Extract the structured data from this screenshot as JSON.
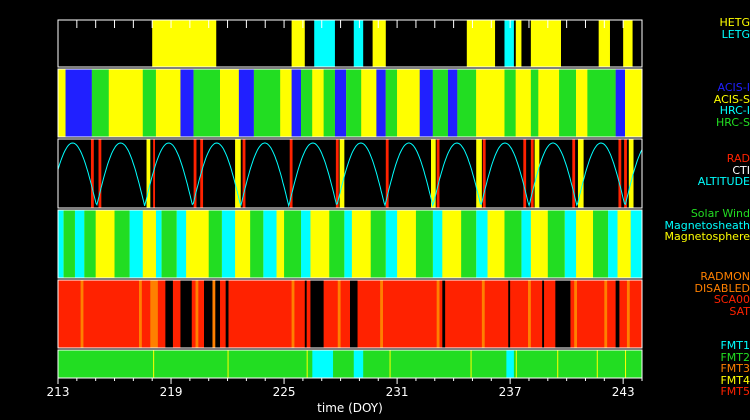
{
  "colors": {
    "yellow": "#ffff00",
    "cyan": "#00ffff",
    "blue": "#2020ff",
    "green": "#22dd22",
    "red": "#ff2200",
    "orange": "#ff8000",
    "white": "#ffffff",
    "black": "#000000"
  },
  "chart_data": {
    "type": "timeline",
    "xlabel": "time (DOY)",
    "xlim": [
      213,
      244
    ],
    "xticks": [
      "213",
      "219",
      "225",
      "231",
      "237",
      "243"
    ],
    "xtick_values": [
      213,
      219,
      225,
      231,
      237,
      243
    ],
    "legends": [
      {
        "panel": "grating",
        "entries": [
          {
            "label": "HETG",
            "color": "#ffff00"
          },
          {
            "label": "LETG",
            "color": "#00ffff"
          }
        ]
      },
      {
        "panel": "instrument",
        "entries": [
          {
            "label": "ACIS-I",
            "color": "#2020ff"
          },
          {
            "label": "ACIS-S",
            "color": "#ffff00"
          },
          {
            "label": "HRC-I",
            "color": "#00ffff"
          },
          {
            "label": "HRC-S",
            "color": "#22dd22"
          }
        ]
      },
      {
        "panel": "radiation",
        "entries": [
          {
            "label": "RAD",
            "color": "#ff2200"
          },
          {
            "label": "CTI",
            "color": "#ffffff"
          },
          {
            "label": "ALTITUDE",
            "color": "#00ffff"
          }
        ]
      },
      {
        "panel": "region",
        "entries": [
          {
            "label": "Solar Wind",
            "color": "#22dd22"
          },
          {
            "label": "Magnetosheath",
            "color": "#00ffff"
          },
          {
            "label": "Magnetosphere",
            "color": "#ffff00"
          }
        ]
      },
      {
        "panel": "radmon",
        "entries": [
          {
            "label": "RADMON",
            "color": "#ff8000"
          },
          {
            "label": "DISABLED",
            "color": "#ff8000"
          },
          {
            "label": "SCA00",
            "color": "#ff2200"
          },
          {
            "label": "SAT",
            "color": "#ff2200"
          }
        ]
      },
      {
        "panel": "format",
        "entries": [
          {
            "label": "FMT1",
            "color": "#00ffff"
          },
          {
            "label": "FMT2",
            "color": "#22dd22"
          },
          {
            "label": "FMT3",
            "color": "#ff8000"
          },
          {
            "label": "FMT4",
            "color": "#ffff00"
          },
          {
            "label": "FMT5",
            "color": "#ff2200"
          }
        ]
      }
    ],
    "panels": [
      {
        "name": "grating",
        "background": "#000000",
        "ticks": true,
        "segments": [
          {
            "x0": 218.0,
            "x1": 221.4,
            "color": "#ffff00"
          },
          {
            "x0": 225.4,
            "x1": 226.1,
            "color": "#ffff00"
          },
          {
            "x0": 226.6,
            "x1": 227.7,
            "color": "#00ffff"
          },
          {
            "x0": 228.7,
            "x1": 229.2,
            "color": "#00ffff"
          },
          {
            "x0": 229.7,
            "x1": 230.4,
            "color": "#ffff00"
          },
          {
            "x0": 234.7,
            "x1": 236.2,
            "color": "#ffff00"
          },
          {
            "x0": 236.7,
            "x1": 237.2,
            "color": "#00ffff"
          },
          {
            "x0": 237.3,
            "x1": 237.6,
            "color": "#ffff00"
          },
          {
            "x0": 238.1,
            "x1": 239.7,
            "color": "#ffff00"
          },
          {
            "x0": 241.7,
            "x1": 242.3,
            "color": "#ffff00"
          },
          {
            "x0": 243.0,
            "x1": 243.5,
            "color": "#ffff00"
          }
        ]
      },
      {
        "name": "instrument",
        "background": "#ffff00",
        "ticks": false,
        "segments": [
          {
            "x0": 213.0,
            "x1": 213.4,
            "color": "#ffff00"
          },
          {
            "x0": 213.4,
            "x1": 214.8,
            "color": "#2020ff"
          },
          {
            "x0": 214.8,
            "x1": 215.7,
            "color": "#22dd22"
          },
          {
            "x0": 215.7,
            "x1": 217.5,
            "color": "#ffff00"
          },
          {
            "x0": 217.5,
            "x1": 218.2,
            "color": "#22dd22"
          },
          {
            "x0": 218.2,
            "x1": 219.5,
            "color": "#ffff00"
          },
          {
            "x0": 219.5,
            "x1": 220.2,
            "color": "#2020ff"
          },
          {
            "x0": 220.2,
            "x1": 221.6,
            "color": "#22dd22"
          },
          {
            "x0": 221.6,
            "x1": 222.6,
            "color": "#ffff00"
          },
          {
            "x0": 222.6,
            "x1": 223.4,
            "color": "#2020ff"
          },
          {
            "x0": 223.4,
            "x1": 224.8,
            "color": "#22dd22"
          },
          {
            "x0": 224.8,
            "x1": 225.4,
            "color": "#ffff00"
          },
          {
            "x0": 225.4,
            "x1": 225.9,
            "color": "#2020ff"
          },
          {
            "x0": 225.9,
            "x1": 226.5,
            "color": "#22dd22"
          },
          {
            "x0": 226.5,
            "x1": 227.1,
            "color": "#ffff00"
          },
          {
            "x0": 227.1,
            "x1": 227.7,
            "color": "#22dd22"
          },
          {
            "x0": 227.7,
            "x1": 228.3,
            "color": "#2020ff"
          },
          {
            "x0": 228.3,
            "x1": 229.1,
            "color": "#22dd22"
          },
          {
            "x0": 229.1,
            "x1": 229.9,
            "color": "#ffff00"
          },
          {
            "x0": 229.9,
            "x1": 230.4,
            "color": "#2020ff"
          },
          {
            "x0": 230.4,
            "x1": 231.0,
            "color": "#22dd22"
          },
          {
            "x0": 231.0,
            "x1": 232.2,
            "color": "#ffff00"
          },
          {
            "x0": 232.2,
            "x1": 232.9,
            "color": "#2020ff"
          },
          {
            "x0": 232.9,
            "x1": 233.7,
            "color": "#22dd22"
          },
          {
            "x0": 233.7,
            "x1": 234.2,
            "color": "#2020ff"
          },
          {
            "x0": 234.2,
            "x1": 235.2,
            "color": "#22dd22"
          },
          {
            "x0": 235.2,
            "x1": 236.7,
            "color": "#ffff00"
          },
          {
            "x0": 236.7,
            "x1": 237.3,
            "color": "#22dd22"
          },
          {
            "x0": 237.3,
            "x1": 238.1,
            "color": "#ffff00"
          },
          {
            "x0": 238.1,
            "x1": 238.5,
            "color": "#22dd22"
          },
          {
            "x0": 238.5,
            "x1": 239.6,
            "color": "#ffff00"
          },
          {
            "x0": 239.6,
            "x1": 240.5,
            "color": "#22dd22"
          },
          {
            "x0": 240.5,
            "x1": 241.1,
            "color": "#ffff00"
          },
          {
            "x0": 241.1,
            "x1": 242.6,
            "color": "#22dd22"
          },
          {
            "x0": 242.6,
            "x1": 243.1,
            "color": "#2020ff"
          },
          {
            "x0": 243.1,
            "x1": 244.0,
            "color": "#ffff00"
          }
        ]
      },
      {
        "name": "radiation",
        "background": "#000000",
        "ticks": false,
        "altitude_period_days": 2.55,
        "altitude_phase_day": 215.05,
        "segments": [
          {
            "x0": 214.75,
            "x1": 214.9,
            "color": "#ff2200"
          },
          {
            "x0": 215.15,
            "x1": 215.3,
            "color": "#ff2200"
          },
          {
            "x0": 217.7,
            "x1": 217.9,
            "color": "#ffff00"
          },
          {
            "x0": 218.05,
            "x1": 218.15,
            "color": "#ff2200"
          },
          {
            "x0": 220.2,
            "x1": 220.35,
            "color": "#ff2200"
          },
          {
            "x0": 220.55,
            "x1": 220.7,
            "color": "#ff2200"
          },
          {
            "x0": 222.4,
            "x1": 222.7,
            "color": "#ffff00"
          },
          {
            "x0": 222.8,
            "x1": 222.95,
            "color": "#ff2200"
          },
          {
            "x0": 225.3,
            "x1": 225.45,
            "color": "#ff2200"
          },
          {
            "x0": 227.75,
            "x1": 227.9,
            "color": "#ff2200"
          },
          {
            "x0": 227.95,
            "x1": 228.2,
            "color": "#ffff00"
          },
          {
            "x0": 230.4,
            "x1": 230.55,
            "color": "#ff2200"
          },
          {
            "x0": 232.8,
            "x1": 233.05,
            "color": "#ffff00"
          },
          {
            "x0": 233.1,
            "x1": 233.25,
            "color": "#ff2200"
          },
          {
            "x0": 235.2,
            "x1": 235.5,
            "color": "#ffff00"
          },
          {
            "x0": 235.55,
            "x1": 235.7,
            "color": "#ff2200"
          },
          {
            "x0": 237.7,
            "x1": 237.85,
            "color": "#ff2200"
          },
          {
            "x0": 238.1,
            "x1": 238.25,
            "color": "#ff2200"
          },
          {
            "x0": 238.3,
            "x1": 238.55,
            "color": "#ffff00"
          },
          {
            "x0": 240.3,
            "x1": 240.45,
            "color": "#ff2200"
          },
          {
            "x0": 240.6,
            "x1": 240.9,
            "color": "#ffff00"
          },
          {
            "x0": 242.75,
            "x1": 242.9,
            "color": "#ff2200"
          },
          {
            "x0": 243.05,
            "x1": 243.2,
            "color": "#ff2200"
          },
          {
            "x0": 243.3,
            "x1": 243.55,
            "color": "#ffff00"
          }
        ]
      },
      {
        "name": "region",
        "background": "#ffff00",
        "ticks": false,
        "segments": [
          {
            "x0": 213.0,
            "x1": 213.3,
            "color": "#00ffff"
          },
          {
            "x0": 213.3,
            "x1": 213.9,
            "color": "#22dd22"
          },
          {
            "x0": 213.9,
            "x1": 214.4,
            "color": "#00ffff"
          },
          {
            "x0": 214.4,
            "x1": 215.0,
            "color": "#22dd22"
          },
          {
            "x0": 216.0,
            "x1": 216.8,
            "color": "#22dd22"
          },
          {
            "x0": 216.8,
            "x1": 217.5,
            "color": "#00ffff"
          },
          {
            "x0": 218.2,
            "x1": 218.5,
            "color": "#00ffff"
          },
          {
            "x0": 218.5,
            "x1": 219.3,
            "color": "#22dd22"
          },
          {
            "x0": 219.3,
            "x1": 219.8,
            "color": "#00ffff"
          },
          {
            "x0": 221.0,
            "x1": 221.7,
            "color": "#22dd22"
          },
          {
            "x0": 221.7,
            "x1": 222.4,
            "color": "#00ffff"
          },
          {
            "x0": 223.2,
            "x1": 223.9,
            "color": "#22dd22"
          },
          {
            "x0": 223.9,
            "x1": 224.6,
            "color": "#00ffff"
          },
          {
            "x0": 225.0,
            "x1": 225.9,
            "color": "#22dd22"
          },
          {
            "x0": 225.9,
            "x1": 226.4,
            "color": "#00ffff"
          },
          {
            "x0": 227.4,
            "x1": 228.2,
            "color": "#22dd22"
          },
          {
            "x0": 228.2,
            "x1": 228.6,
            "color": "#00ffff"
          },
          {
            "x0": 229.6,
            "x1": 230.4,
            "color": "#22dd22"
          },
          {
            "x0": 230.4,
            "x1": 231.0,
            "color": "#00ffff"
          },
          {
            "x0": 232.0,
            "x1": 232.9,
            "color": "#22dd22"
          },
          {
            "x0": 232.9,
            "x1": 233.4,
            "color": "#00ffff"
          },
          {
            "x0": 234.4,
            "x1": 235.2,
            "color": "#22dd22"
          },
          {
            "x0": 235.2,
            "x1": 235.8,
            "color": "#00ffff"
          },
          {
            "x0": 236.7,
            "x1": 237.6,
            "color": "#22dd22"
          },
          {
            "x0": 237.6,
            "x1": 238.1,
            "color": "#00ffff"
          },
          {
            "x0": 239.0,
            "x1": 239.9,
            "color": "#22dd22"
          },
          {
            "x0": 239.9,
            "x1": 240.5,
            "color": "#00ffff"
          },
          {
            "x0": 241.4,
            "x1": 242.2,
            "color": "#22dd22"
          },
          {
            "x0": 242.2,
            "x1": 242.7,
            "color": "#00ffff"
          },
          {
            "x0": 243.4,
            "x1": 244.0,
            "color": "#00ffff"
          }
        ]
      },
      {
        "name": "radmon",
        "background": "#ff2200",
        "ticks": false,
        "segments": [
          {
            "x0": 214.2,
            "x1": 214.35,
            "color": "#ff8000"
          },
          {
            "x0": 217.3,
            "x1": 217.45,
            "color": "#ff8000"
          },
          {
            "x0": 217.9,
            "x1": 218.3,
            "color": "#ff8000"
          },
          {
            "x0": 218.7,
            "x1": 219.1,
            "color": "#000000"
          },
          {
            "x0": 219.5,
            "x1": 220.1,
            "color": "#000000"
          },
          {
            "x0": 220.3,
            "x1": 220.45,
            "color": "#ff8000"
          },
          {
            "x0": 220.75,
            "x1": 221.6,
            "color": "#000000"
          },
          {
            "x0": 221.2,
            "x1": 221.35,
            "color": "#ff8000"
          },
          {
            "x0": 221.9,
            "x1": 222.05,
            "color": "#000000"
          },
          {
            "x0": 225.4,
            "x1": 225.55,
            "color": "#ff8000"
          },
          {
            "x0": 226.1,
            "x1": 226.2,
            "color": "#000000"
          },
          {
            "x0": 226.4,
            "x1": 227.1,
            "color": "#000000"
          },
          {
            "x0": 227.85,
            "x1": 228.0,
            "color": "#ff8000"
          },
          {
            "x0": 228.5,
            "x1": 228.9,
            "color": "#000000"
          },
          {
            "x0": 230.1,
            "x1": 230.25,
            "color": "#ff8000"
          },
          {
            "x0": 233.1,
            "x1": 233.25,
            "color": "#ff8000"
          },
          {
            "x0": 233.4,
            "x1": 233.55,
            "color": "#000000"
          },
          {
            "x0": 235.5,
            "x1": 235.65,
            "color": "#ff8000"
          },
          {
            "x0": 236.9,
            "x1": 237.0,
            "color": "#000000"
          },
          {
            "x0": 237.95,
            "x1": 238.1,
            "color": "#ff8000"
          },
          {
            "x0": 238.7,
            "x1": 238.8,
            "color": "#000000"
          },
          {
            "x0": 239.4,
            "x1": 240.2,
            "color": "#000000"
          },
          {
            "x0": 240.4,
            "x1": 240.55,
            "color": "#ff8000"
          },
          {
            "x0": 242.0,
            "x1": 242.15,
            "color": "#ff8000"
          },
          {
            "x0": 242.6,
            "x1": 242.8,
            "color": "#000000"
          },
          {
            "x0": 243.2,
            "x1": 243.35,
            "color": "#ff8000"
          }
        ]
      },
      {
        "name": "format",
        "background": "#22dd22",
        "ticks": false,
        "segments": [
          {
            "x0": 218.05,
            "x1": 218.1,
            "color": "#ffff00"
          },
          {
            "x0": 222.0,
            "x1": 222.05,
            "color": "#ffff00"
          },
          {
            "x0": 226.2,
            "x1": 226.25,
            "color": "#ffff00"
          },
          {
            "x0": 226.5,
            "x1": 227.6,
            "color": "#00ffff"
          },
          {
            "x0": 228.7,
            "x1": 229.2,
            "color": "#00ffff"
          },
          {
            "x0": 230.6,
            "x1": 230.65,
            "color": "#ffff00"
          },
          {
            "x0": 234.9,
            "x1": 234.95,
            "color": "#ffff00"
          },
          {
            "x0": 236.8,
            "x1": 237.2,
            "color": "#00ffff"
          },
          {
            "x0": 237.3,
            "x1": 237.35,
            "color": "#ffff00"
          },
          {
            "x0": 239.5,
            "x1": 239.55,
            "color": "#ffff00"
          },
          {
            "x0": 241.6,
            "x1": 241.65,
            "color": "#ffff00"
          },
          {
            "x0": 243.1,
            "x1": 243.15,
            "color": "#ffff00"
          }
        ]
      }
    ]
  }
}
